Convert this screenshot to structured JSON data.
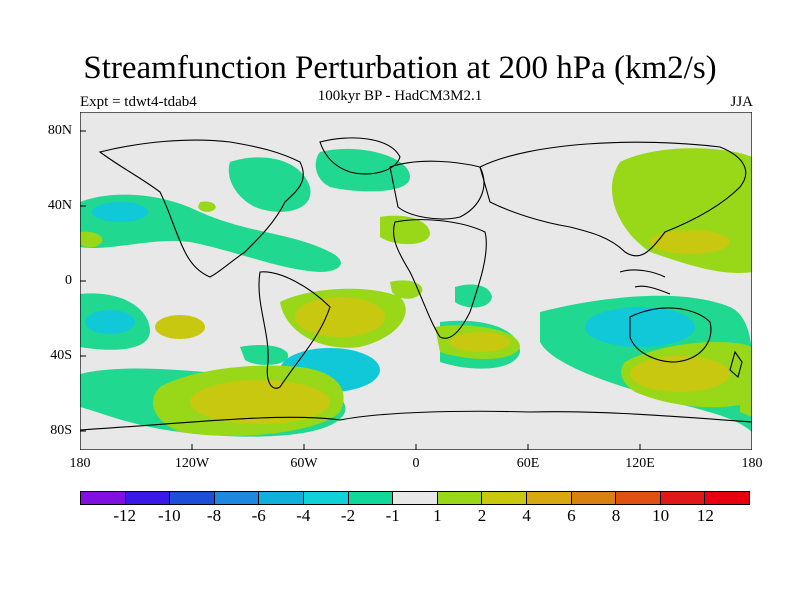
{
  "title": "Streamfunction Perturbation at 200 hPa (km2/s)",
  "subtitle": "100kyr BP - HadCM3M2.1",
  "experiment": "Expt = tdwt4-tdab4",
  "season": "JJA",
  "axes": {
    "lat_labels": [
      "80N",
      "40N",
      "0",
      "40S",
      "80S"
    ],
    "lon_labels": [
      "180",
      "120W",
      "60W",
      "0",
      "60E",
      "120E",
      "180"
    ]
  },
  "colorbar": {
    "labels": [
      "-12",
      "-10",
      "-8",
      "-6",
      "-4",
      "-2",
      "-1",
      "1",
      "2",
      "4",
      "6",
      "8",
      "10",
      "12"
    ],
    "colors": [
      "#8010e0",
      "#3a18e8",
      "#1c4ed8",
      "#1e88e0",
      "#10b0dc",
      "#10d0d8",
      "#10d89a",
      "#e8e8e8",
      "#98d818",
      "#c8c810",
      "#d8a810",
      "#d88010",
      "#e05010",
      "#e01818",
      "#e80010"
    ]
  },
  "colors": {
    "background": "#e8e8e8",
    "neg_green": "#20d890",
    "neg_cyan": "#10c8d8",
    "pos_yellowgreen": "#98d818",
    "pos_olive": "#c8c810"
  }
}
